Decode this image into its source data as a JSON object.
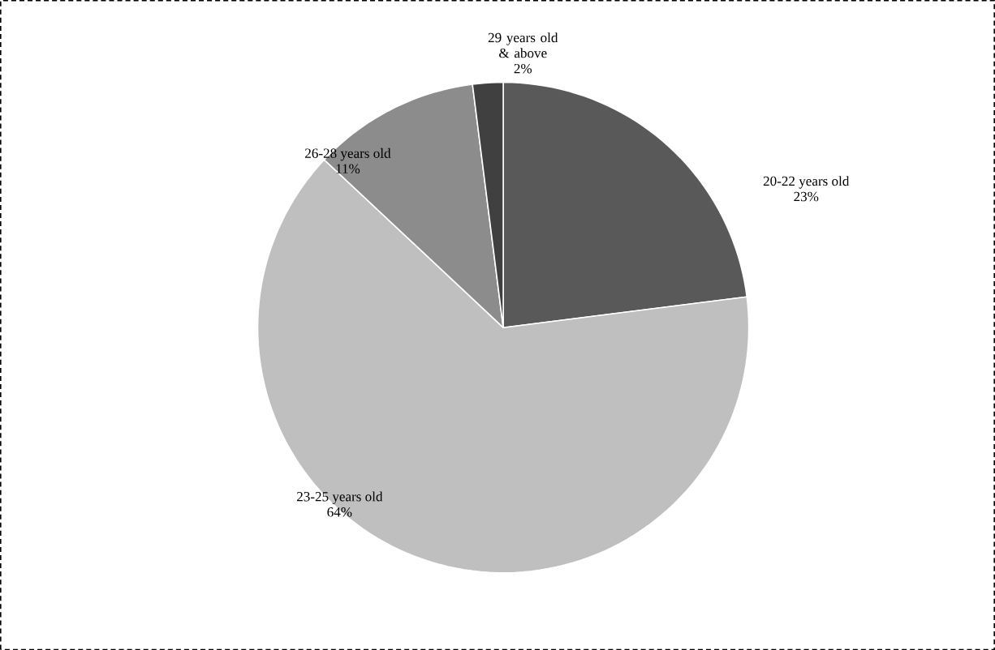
{
  "chart_data": {
    "type": "pie",
    "categories": [
      "20-22 years old",
      "23-25 years old",
      "26-28 years old",
      "29 years old & above"
    ],
    "values": [
      23,
      64,
      11,
      2
    ],
    "value_labels": [
      "23%",
      "64%",
      "11%",
      "2%"
    ],
    "colors": [
      "#595959",
      "#bfbfbf",
      "#8c8c8c",
      "#404040"
    ]
  }
}
